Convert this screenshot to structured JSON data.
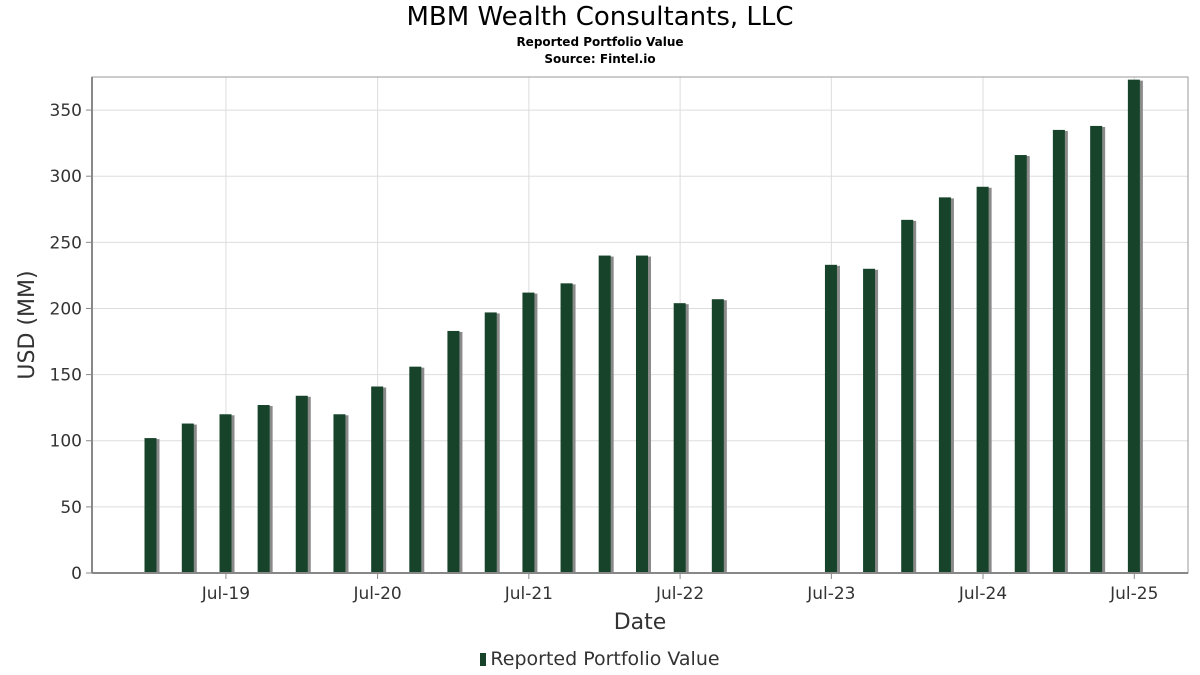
{
  "chart_data": {
    "type": "bar",
    "title": "MBM Wealth Consultants, LLC",
    "subtitle": "Reported Portfolio Value",
    "source": "Source: Fintel.io",
    "xlabel": "Date",
    "ylabel": "USD (MM)",
    "ylim": [
      0,
      375
    ],
    "yticks": [
      0,
      50,
      100,
      150,
      200,
      250,
      300,
      350
    ],
    "xticks": [
      "Jul-19",
      "Jul-20",
      "Jul-21",
      "Jul-22",
      "Jul-23",
      "Jul-24",
      "Jul-25"
    ],
    "grid": true,
    "legend": "bottom-center",
    "colors": {
      "bar": "#16432a",
      "shadow": "#8a8a8a",
      "grid": "#dddddd",
      "axis": "#888888"
    },
    "series": [
      {
        "name": "Reported Portfolio Value",
        "x": [
          "2018-12-31",
          "2019-03-31",
          "2019-06-30",
          "2019-09-30",
          "2019-12-31",
          "2020-03-31",
          "2020-06-30",
          "2020-09-30",
          "2020-12-31",
          "2021-03-31",
          "2021-06-30",
          "2021-09-30",
          "2021-12-31",
          "2022-03-31",
          "2022-06-30",
          "2022-09-30",
          "2022-12-31",
          "2023-03-31",
          "2023-06-30",
          "2023-09-30",
          "2023-12-31",
          "2024-03-31",
          "2024-06-30",
          "2024-09-30",
          "2024-12-31",
          "2025-03-31",
          "2025-06-30"
        ],
        "values": [
          102,
          113,
          120,
          127,
          134,
          120,
          141,
          156,
          183,
          197,
          212,
          219,
          240,
          240,
          204,
          207,
          0,
          0,
          233,
          230,
          267,
          284,
          292,
          316,
          335,
          338,
          373
        ]
      }
    ]
  }
}
